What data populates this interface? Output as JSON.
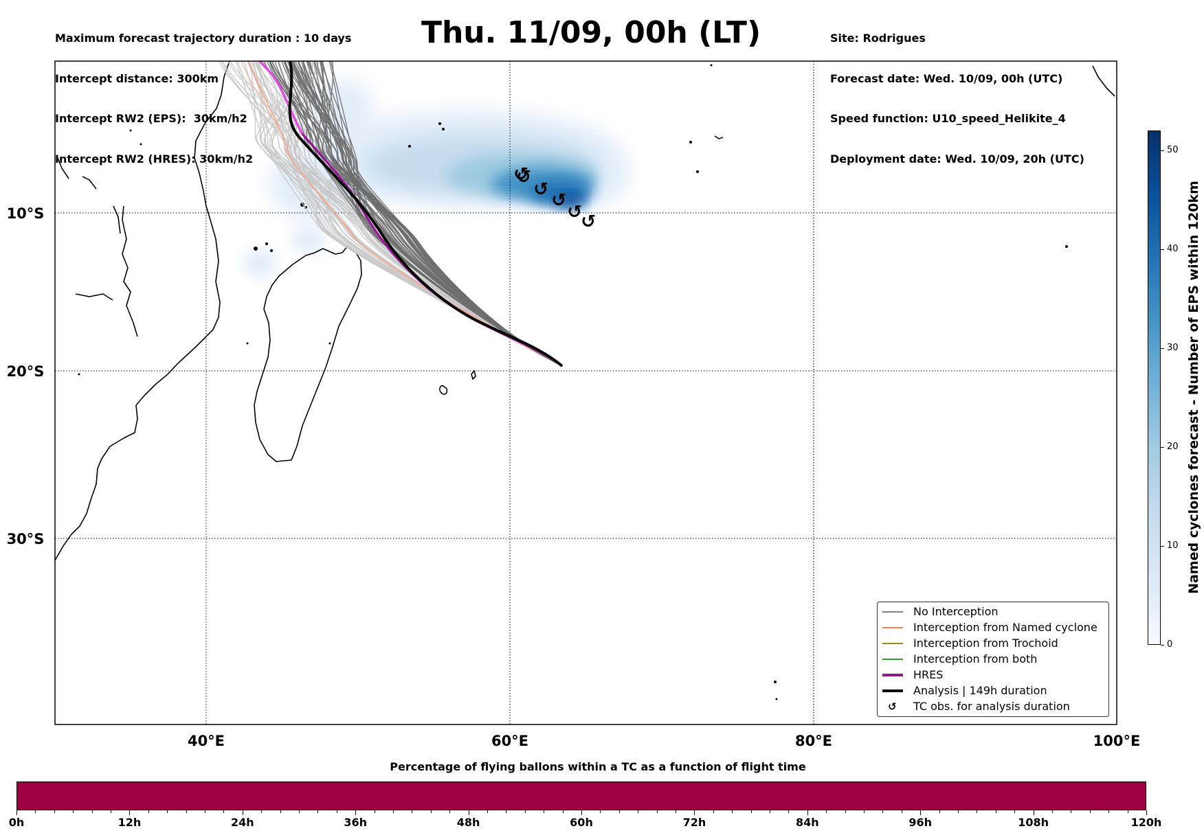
{
  "info_left": [
    "Maximum forecast trajectory duration : 10 days",
    "Intercept distance: 300km",
    "Intercept RW2 (EPS):  30km/h2",
    "Intercept RW2 (HRES): 30km/h2"
  ],
  "info_right": [
    "Site: Rodrigues",
    "Forecast date: Wed. 10/09, 00h (UTC)",
    "Speed function: U10_speed_Helikite_4",
    "Deployment date: Wed. 10/09, 20h (UTC)"
  ],
  "title": "Thu. 11/09, 00h (LT)",
  "map": {
    "lon_labels": [
      "40°E",
      "60°E",
      "80°E",
      "100°E"
    ],
    "lat_labels": [
      "10°S",
      "20°S",
      "30°S"
    ]
  },
  "legend": [
    {
      "label": "No Interception",
      "color": "#808080"
    },
    {
      "label": "Interception from Named cyclone",
      "color": "#ff7f50"
    },
    {
      "label": "Interception from Trochoid",
      "color": "#9b8c1a"
    },
    {
      "label": "Interception from both",
      "color": "#2ca02c"
    },
    {
      "label": "HRES",
      "color": "#8b1a8b"
    },
    {
      "label": "Analysis | 149h duration",
      "color": "#000000"
    },
    {
      "label": "TC obs. for analysis duration",
      "icon": "cyclone-icon"
    }
  ],
  "colorbar": {
    "title": "Named cyclones forecast - Number of EPS within 120km",
    "ticks": [
      "0",
      "10",
      "20",
      "30",
      "40",
      "50"
    ],
    "range": [
      0,
      52
    ]
  },
  "percent_bar": {
    "title": "Percentage of flying ballons within a TC as a function of flight time",
    "ticks": [
      "0h",
      "12h",
      "24h",
      "36h",
      "48h",
      "60h",
      "72h",
      "84h",
      "96h",
      "108h",
      "120h"
    ],
    "color": "#9e0142"
  },
  "tc_obs_symbol": "↺"
}
